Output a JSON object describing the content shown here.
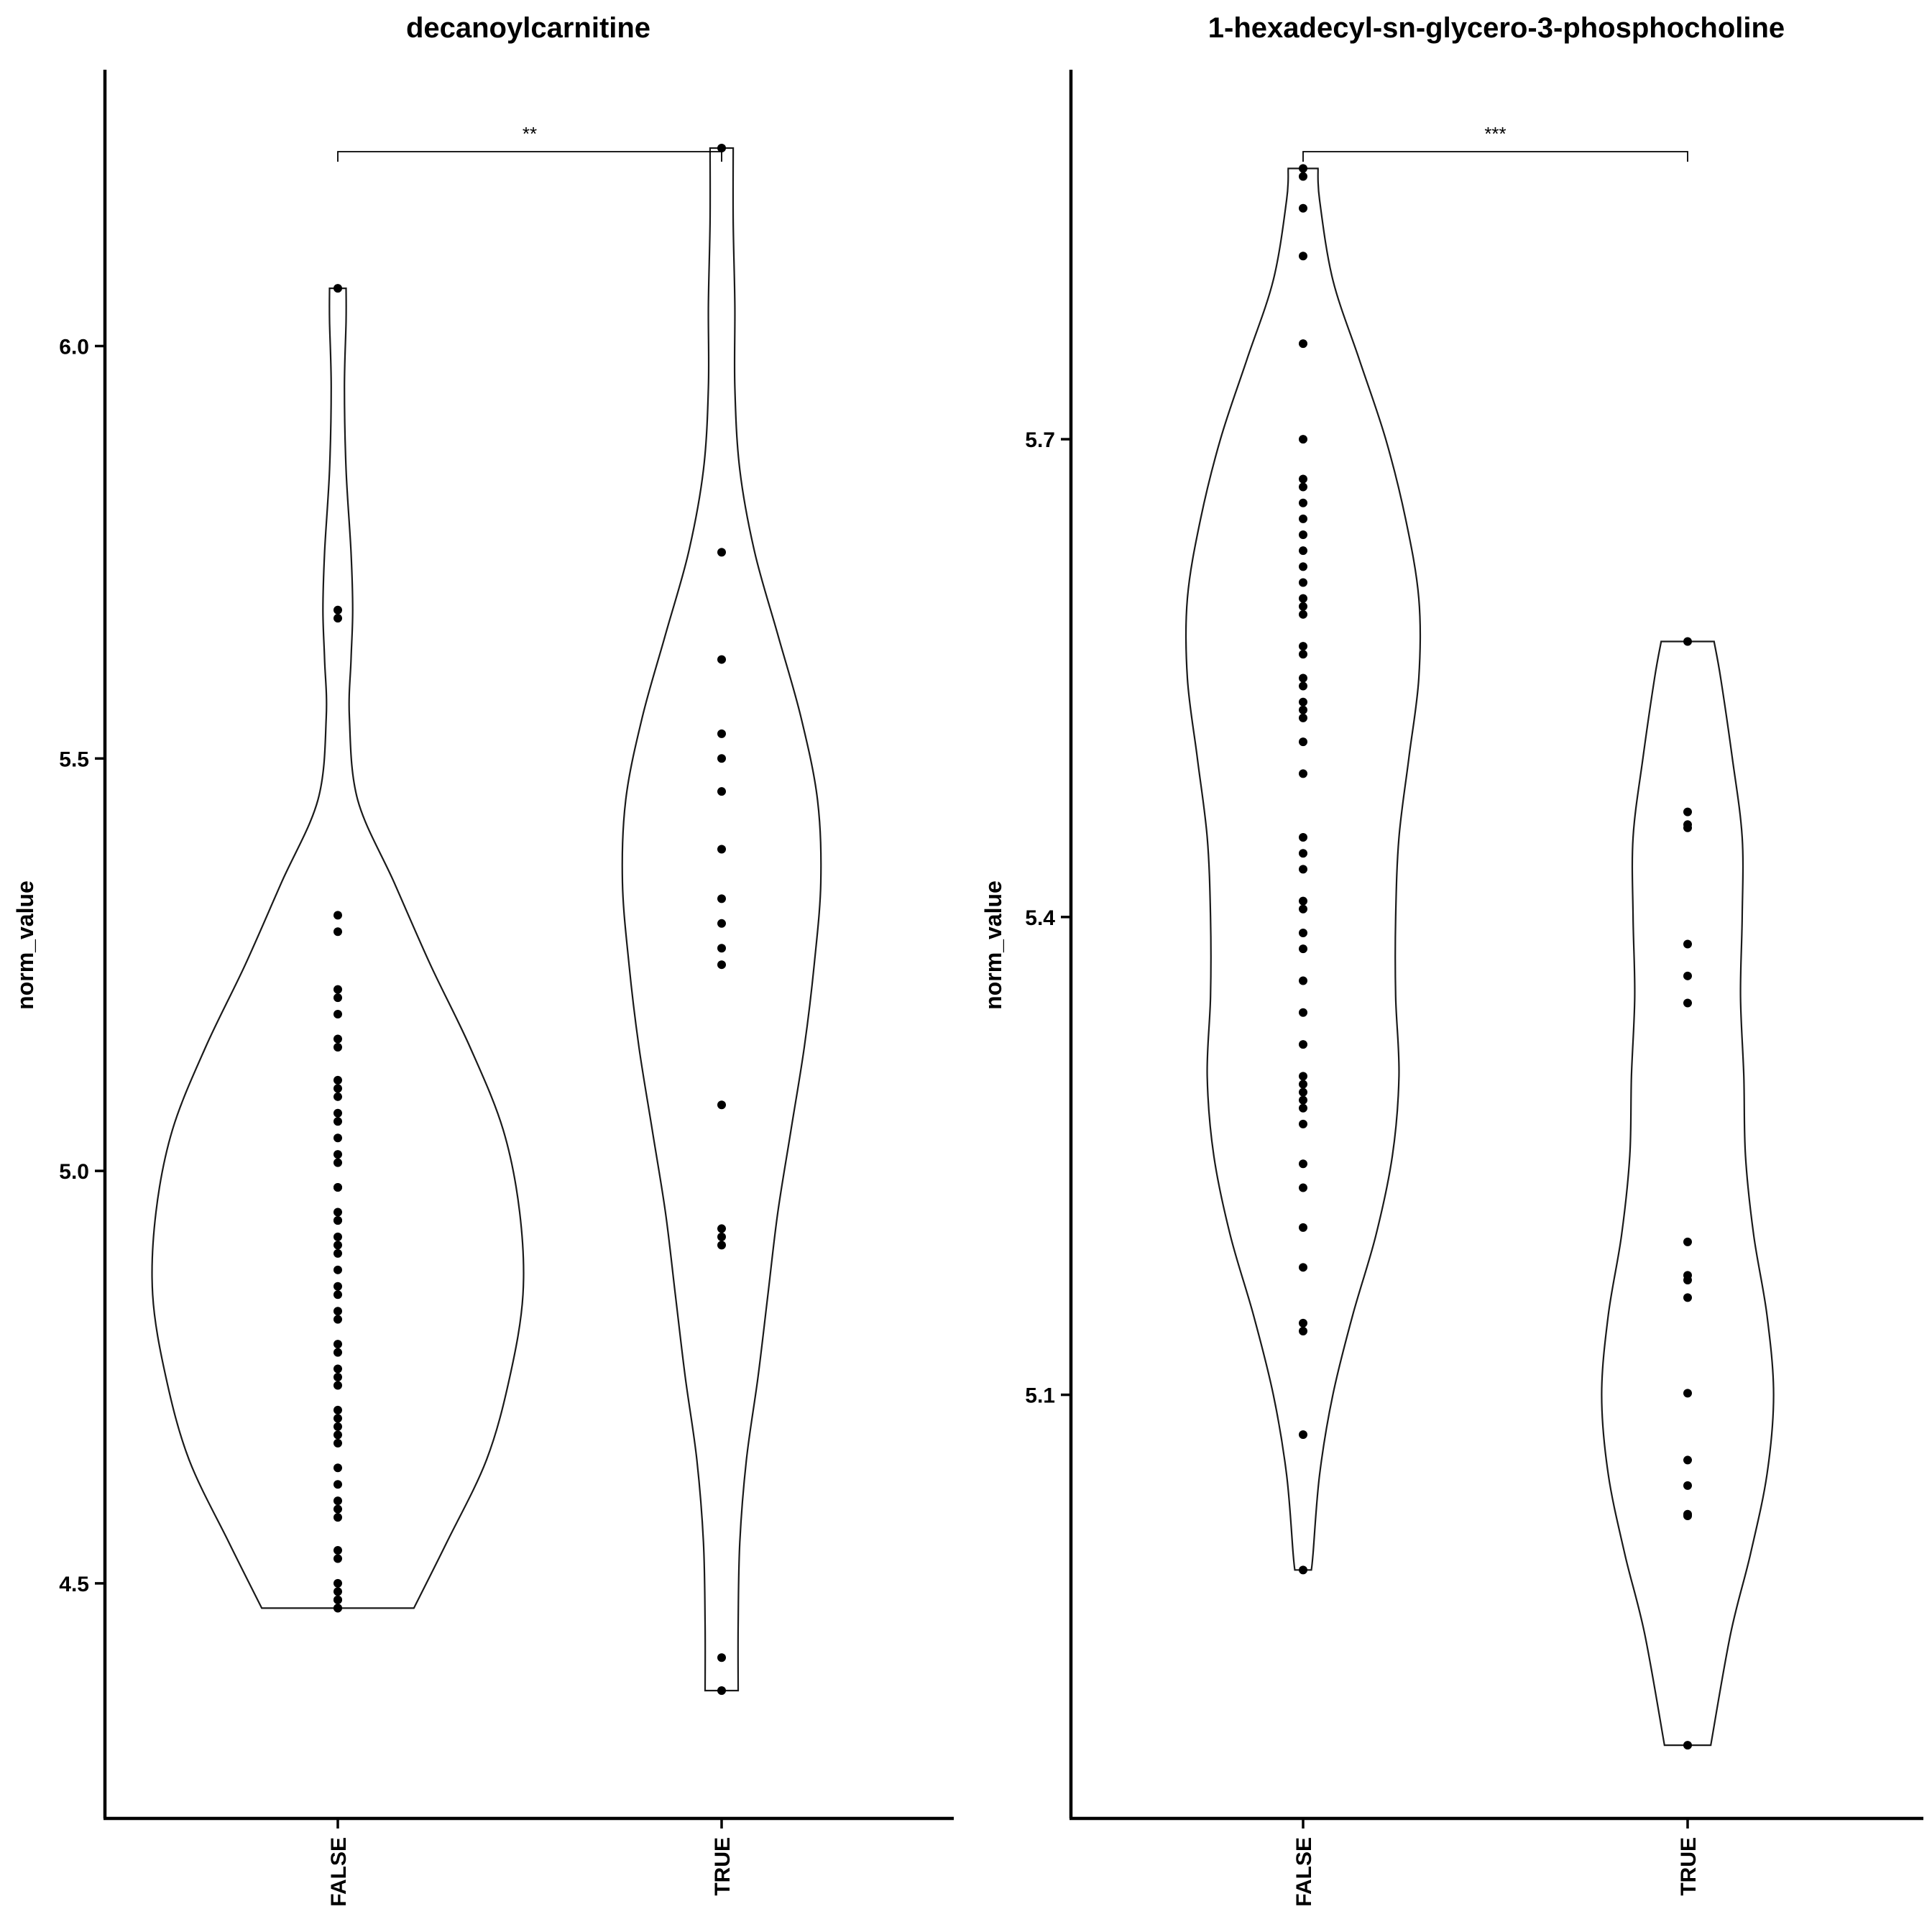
{
  "chart_data": [
    {
      "type": "violin",
      "title": "decanoylcarnitine",
      "xlabel": "",
      "ylabel": "norm_value",
      "categories": [
        "FALSE",
        "TRUE"
      ],
      "ylim": [
        4.215,
        6.335
      ],
      "yticks": [
        4.5,
        5.0,
        5.5,
        6.0
      ],
      "ytick_labels": [
        "4.5",
        "5.0",
        "5.5",
        "6.0"
      ],
      "significance": {
        "from": "FALSE",
        "to": "TRUE",
        "label": "**",
        "y": 6.25
      },
      "groups": [
        {
          "name": "FALSE",
          "points": [
            6.07,
            5.68,
            5.67,
            5.31,
            5.29,
            5.22,
            5.21,
            5.19,
            5.16,
            5.15,
            5.11,
            5.1,
            5.09,
            5.07,
            5.06,
            5.04,
            5.02,
            5.01,
            4.98,
            4.98,
            4.95,
            4.94,
            4.94,
            4.92,
            4.91,
            4.9,
            4.88,
            4.86,
            4.85,
            4.83,
            4.82,
            4.79,
            4.78,
            4.76,
            4.75,
            4.74,
            4.71,
            4.7,
            4.69,
            4.68,
            4.67,
            4.64,
            4.62,
            4.6,
            4.59,
            4.58,
            4.54,
            4.53,
            4.5,
            4.49,
            4.48,
            4.48,
            4.47,
            4.47
          ],
          "density": [
            [
              4.47,
              0.23
            ],
            [
              4.55,
              0.33
            ],
            [
              4.65,
              0.45
            ],
            [
              4.75,
              0.52
            ],
            [
              4.85,
              0.56
            ],
            [
              4.95,
              0.55
            ],
            [
              5.05,
              0.5
            ],
            [
              5.15,
              0.4
            ],
            [
              5.25,
              0.28
            ],
            [
              5.35,
              0.17
            ],
            [
              5.45,
              0.06
            ],
            [
              5.55,
              0.035
            ],
            [
              5.62,
              0.04
            ],
            [
              5.68,
              0.045
            ],
            [
              5.75,
              0.04
            ],
            [
              5.85,
              0.025
            ],
            [
              5.95,
              0.02
            ],
            [
              6.03,
              0.025
            ],
            [
              6.07,
              0.025
            ]
          ]
        },
        {
          "name": "TRUE",
          "points": [
            6.24,
            5.75,
            5.62,
            5.53,
            5.5,
            5.46,
            5.39,
            5.33,
            5.3,
            5.27,
            5.25,
            5.08,
            4.93,
            4.92,
            4.91,
            4.41,
            4.37
          ],
          "density": [
            [
              4.37,
              0.05
            ],
            [
              4.45,
              0.05
            ],
            [
              4.55,
              0.055
            ],
            [
              4.65,
              0.075
            ],
            [
              4.75,
              0.11
            ],
            [
              4.85,
              0.14
            ],
            [
              4.95,
              0.17
            ],
            [
              5.05,
              0.21
            ],
            [
              5.15,
              0.25
            ],
            [
              5.25,
              0.28
            ],
            [
              5.35,
              0.3
            ],
            [
              5.45,
              0.29
            ],
            [
              5.55,
              0.24
            ],
            [
              5.65,
              0.17
            ],
            [
              5.75,
              0.1
            ],
            [
              5.85,
              0.055
            ],
            [
              5.95,
              0.04
            ],
            [
              6.05,
              0.04
            ],
            [
              6.15,
              0.035
            ],
            [
              6.24,
              0.035
            ]
          ]
        }
      ]
    },
    {
      "type": "violin",
      "title": "1-hexadecyl-sn-glycero-3-phosphocholine",
      "xlabel": "",
      "ylabel": "norm_value",
      "categories": [
        "FALSE",
        "TRUE"
      ],
      "ylim": [
        4.834,
        5.932
      ],
      "yticks": [
        5.1,
        5.4,
        5.7
      ],
      "ytick_labels": [
        "5.1",
        "5.4",
        "5.7"
      ],
      "significance": {
        "from": "FALSE",
        "to": "TRUE",
        "label": "***",
        "y": 5.875
      },
      "groups": [
        {
          "name": "FALSE",
          "points": [
            5.87,
            5.865,
            5.845,
            5.815,
            5.76,
            5.7,
            5.675,
            5.67,
            5.66,
            5.65,
            5.64,
            5.63,
            5.62,
            5.61,
            5.6,
            5.595,
            5.59,
            5.57,
            5.565,
            5.55,
            5.545,
            5.535,
            5.53,
            5.525,
            5.51,
            5.49,
            5.45,
            5.44,
            5.43,
            5.41,
            5.405,
            5.39,
            5.38,
            5.36,
            5.34,
            5.32,
            5.3,
            5.295,
            5.29,
            5.285,
            5.28,
            5.27,
            5.245,
            5.23,
            5.205,
            5.18,
            5.145,
            5.14,
            5.075,
            4.99
          ],
          "density": [
            [
              4.99,
              0.025
            ],
            [
              5.0,
              0.03
            ],
            [
              5.05,
              0.05
            ],
            [
              5.1,
              0.09
            ],
            [
              5.15,
              0.15
            ],
            [
              5.2,
              0.22
            ],
            [
              5.25,
              0.27
            ],
            [
              5.3,
              0.29
            ],
            [
              5.35,
              0.28
            ],
            [
              5.4,
              0.28
            ],
            [
              5.45,
              0.29
            ],
            [
              5.5,
              0.32
            ],
            [
              5.55,
              0.35
            ],
            [
              5.6,
              0.35
            ],
            [
              5.65,
              0.31
            ],
            [
              5.7,
              0.25
            ],
            [
              5.75,
              0.17
            ],
            [
              5.8,
              0.09
            ],
            [
              5.85,
              0.05
            ],
            [
              5.87,
              0.045
            ]
          ]
        },
        {
          "name": "TRUE",
          "points": [
            5.573,
            5.466,
            5.458,
            5.456,
            5.383,
            5.363,
            5.346,
            5.196,
            5.175,
            5.172,
            5.161,
            5.101,
            5.059,
            5.043,
            5.025,
            5.024,
            4.88
          ],
          "density": [
            [
              4.88,
              0.07
            ],
            [
              4.95,
              0.13
            ],
            [
              5.0,
              0.19
            ],
            [
              5.05,
              0.24
            ],
            [
              5.1,
              0.26
            ],
            [
              5.15,
              0.24
            ],
            [
              5.2,
              0.2
            ],
            [
              5.25,
              0.175
            ],
            [
              5.3,
              0.17
            ],
            [
              5.35,
              0.16
            ],
            [
              5.4,
              0.165
            ],
            [
              5.45,
              0.165
            ],
            [
              5.5,
              0.135
            ],
            [
              5.55,
              0.1
            ],
            [
              5.573,
              0.08
            ]
          ]
        }
      ]
    }
  ]
}
